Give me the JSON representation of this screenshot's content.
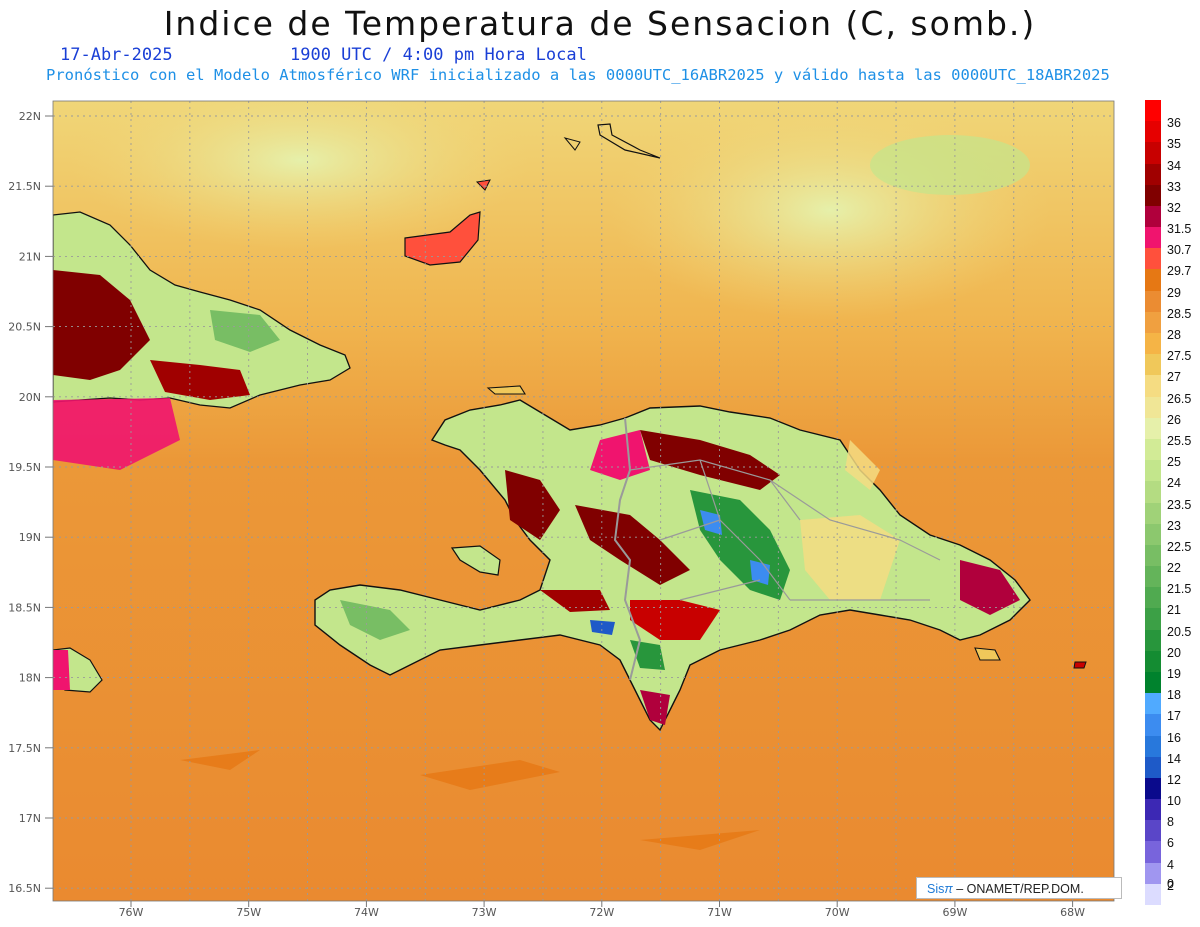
{
  "header": {
    "title": "Indice de Temperatura de Sensacion (C, somb.)",
    "date": "17-Abr-2025",
    "time": "1900 UTC / 4:00 pm Hora Local",
    "subtitle": "Pronóstico con el Modelo Atmosférico WRF inicializado a las 0000UTC_16ABR2025 y válido hasta las  0000UTC_18ABR2025"
  },
  "axes": {
    "lat_labels": [
      "22N",
      "21.5N",
      "21N",
      "20.5N",
      "20N",
      "19.5N",
      "19N",
      "18.5N",
      "18N",
      "17.5N",
      "17N",
      "16.5N"
    ],
    "lon_labels": [
      "76W",
      "75W",
      "74W",
      "73W",
      "72W",
      "71W",
      "70W",
      "69W",
      "68W"
    ]
  },
  "legend": {
    "levels": [
      {
        "label": "36",
        "color": "#ff0000"
      },
      {
        "label": "35",
        "color": "#e60000"
      },
      {
        "label": "34",
        "color": "#c80000"
      },
      {
        "label": "33",
        "color": "#a00000"
      },
      {
        "label": "32",
        "color": "#800000"
      },
      {
        "label": "31.5",
        "color": "#b0003c"
      },
      {
        "label": "30.7",
        "color": "#f0146e"
      },
      {
        "label": "29.7",
        "color": "#ff503c"
      },
      {
        "label": "29",
        "color": "#e67814"
      },
      {
        "label": "28.5",
        "color": "#eb8c32"
      },
      {
        "label": "28",
        "color": "#f0a040"
      },
      {
        "label": "27.5",
        "color": "#f5b446"
      },
      {
        "label": "27",
        "color": "#f0c85a"
      },
      {
        "label": "26.5",
        "color": "#f5dc82"
      },
      {
        "label": "26",
        "color": "#f0e696"
      },
      {
        "label": "25.5",
        "color": "#e6f0aa"
      },
      {
        "label": "25",
        "color": "#d2eb96"
      },
      {
        "label": "24",
        "color": "#c3e68c"
      },
      {
        "label": "23.5",
        "color": "#b4dc82"
      },
      {
        "label": "23",
        "color": "#a0d278"
      },
      {
        "label": "22.5",
        "color": "#8cc86e"
      },
      {
        "label": "22",
        "color": "#78be64"
      },
      {
        "label": "21.5",
        "color": "#64b45a"
      },
      {
        "label": "21",
        "color": "#50aa50"
      },
      {
        "label": "20.5",
        "color": "#3ca046"
      },
      {
        "label": "20",
        "color": "#28963c"
      },
      {
        "label": "19",
        "color": "#148c32"
      },
      {
        "label": "18",
        "color": "#00822d"
      },
      {
        "label": "17",
        "color": "#50aaff"
      },
      {
        "label": "16",
        "color": "#3c8cf0"
      },
      {
        "label": "14",
        "color": "#2878dc"
      },
      {
        "label": "12",
        "color": "#1e5ac8"
      },
      {
        "label": "10",
        "color": "#0a0a8c"
      },
      {
        "label": "8",
        "color": "#3c28b4"
      },
      {
        "label": "6",
        "color": "#5a46c8"
      },
      {
        "label": "4",
        "color": "#7864dc"
      },
      {
        "label": "2",
        "color": "#a096f0"
      },
      {
        "label": "0",
        "color": "#dcdcff"
      }
    ]
  },
  "credit": {
    "brand": "Sis",
    "pi": "π",
    "text": " – ONAMET/REP.DOM."
  },
  "colors": {
    "sea_base": "#eb8c32",
    "sea_north": "#f0c85a",
    "land_cool": "#c3e68c",
    "land_hot": "#800000",
    "coast": "#111111",
    "borders": "#9a9a9a"
  }
}
